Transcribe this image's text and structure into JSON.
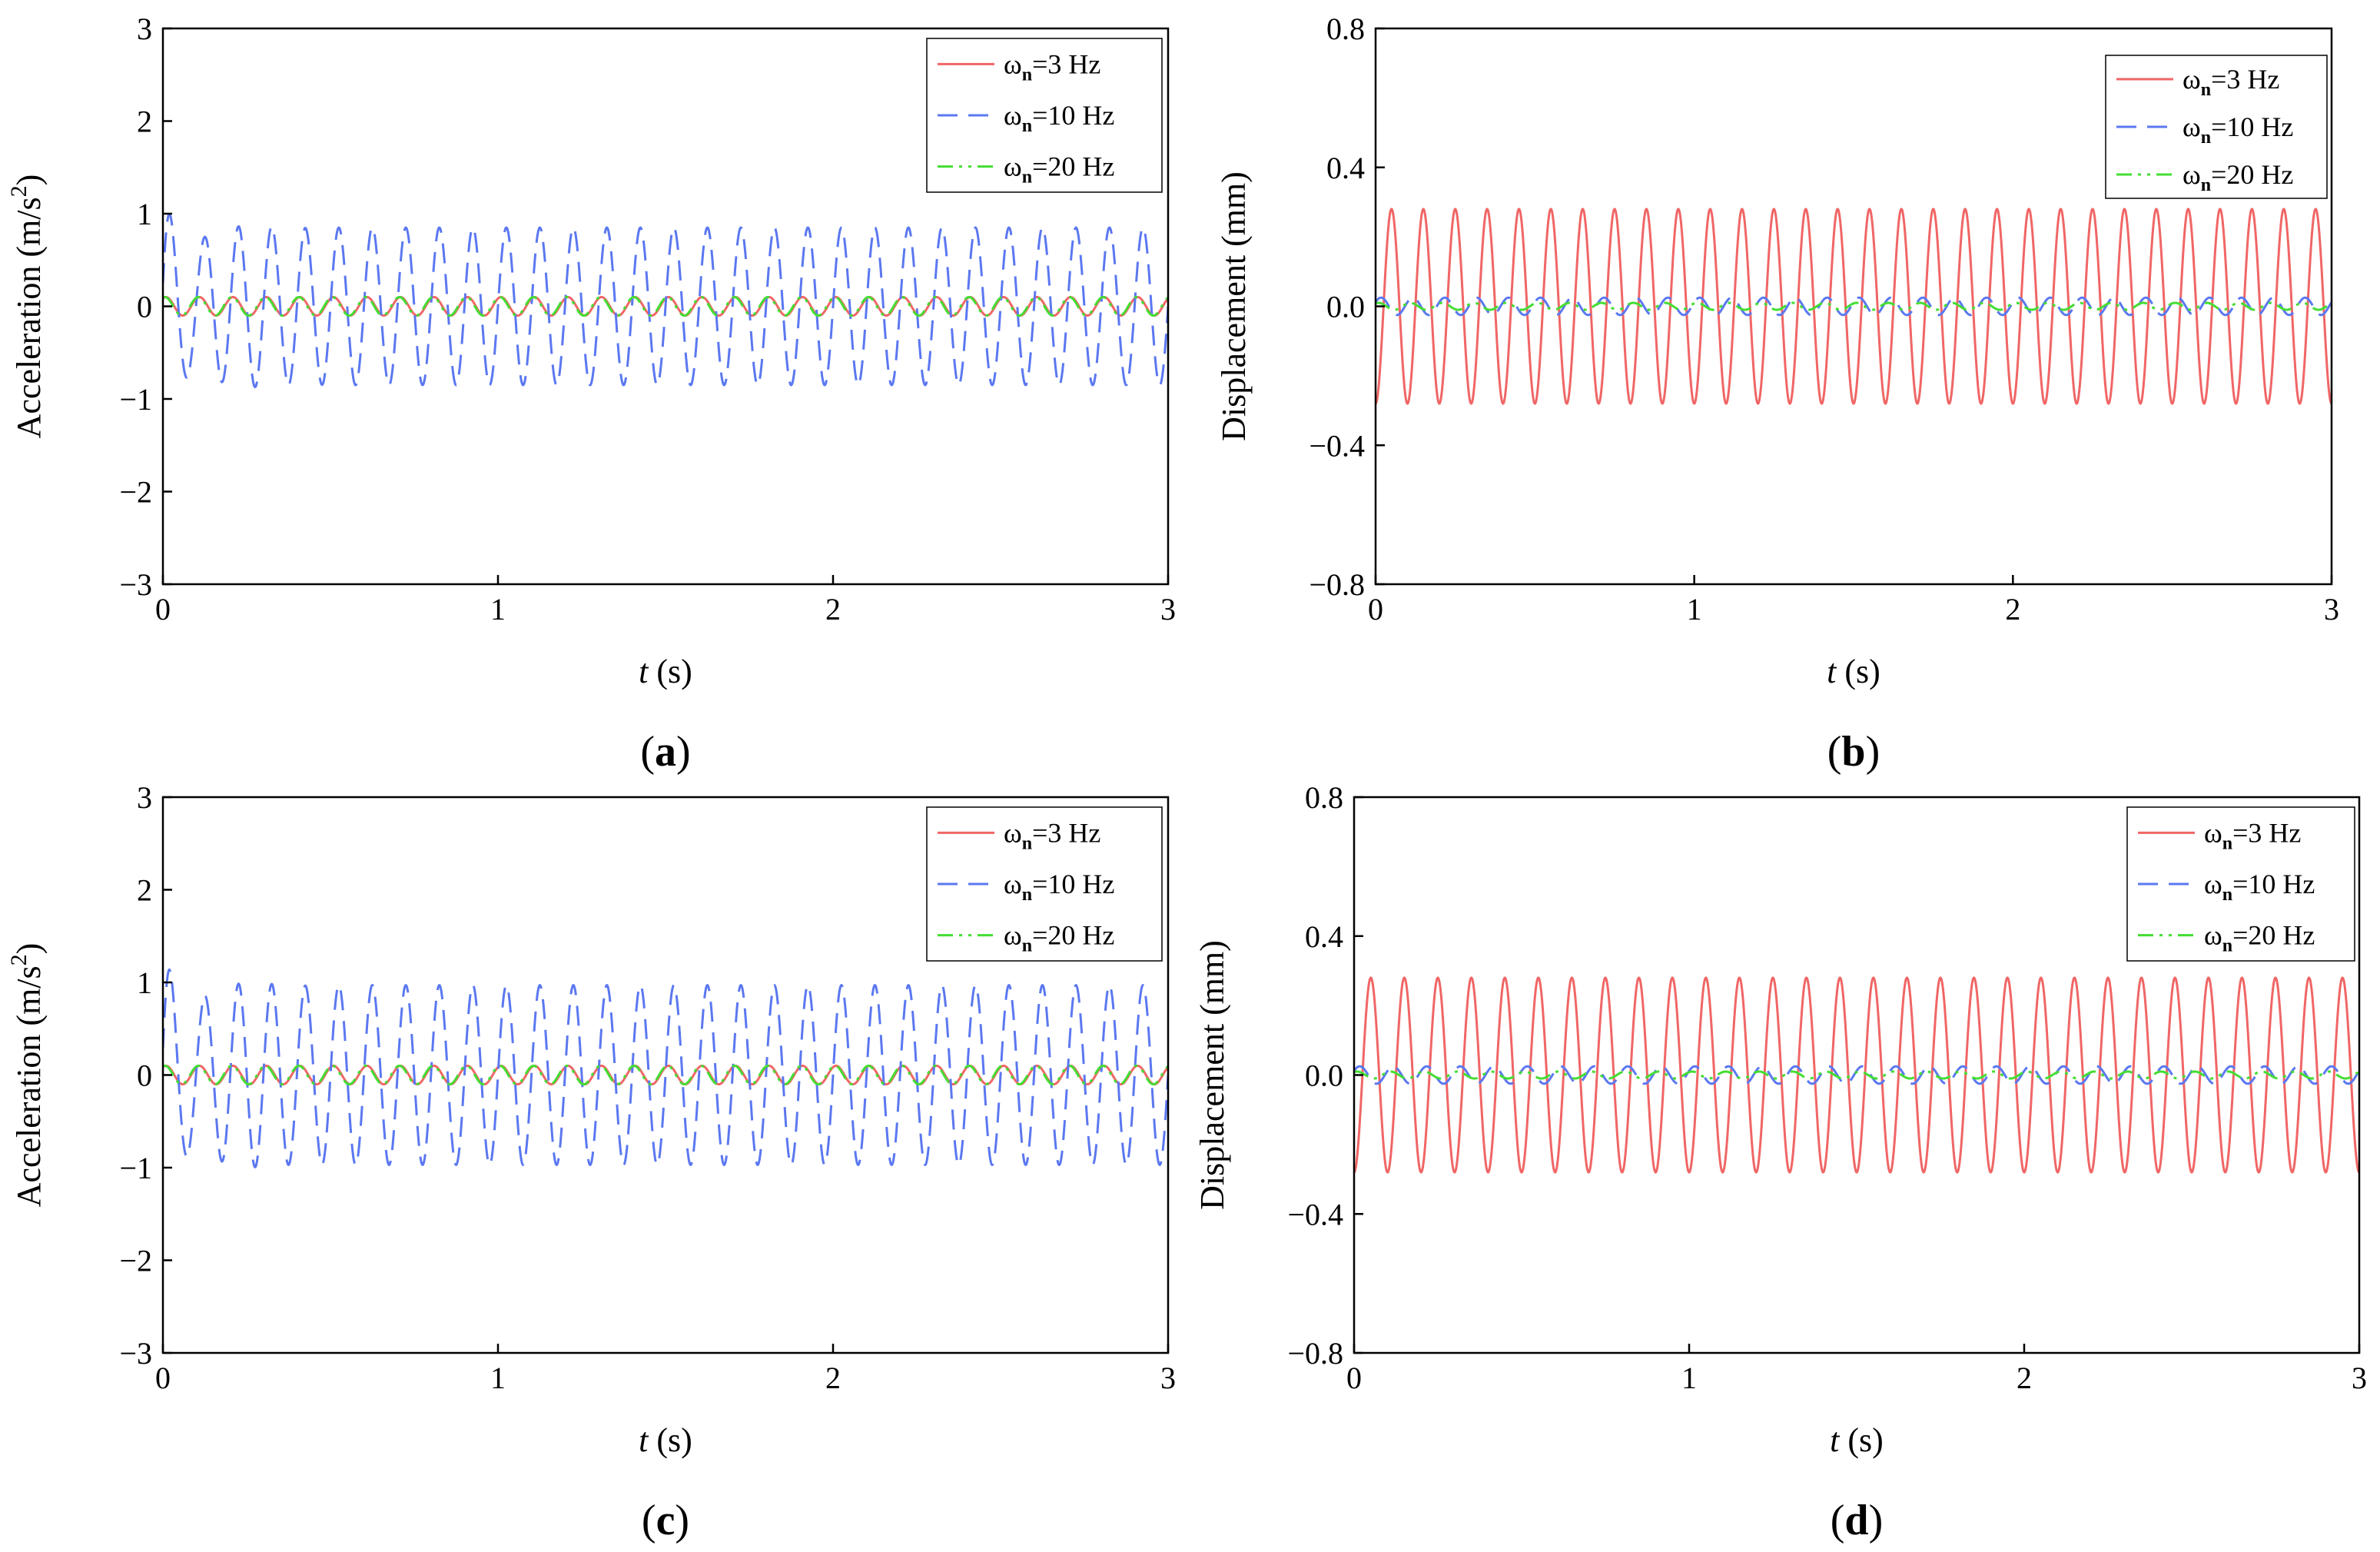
{
  "colors": {
    "s3": "#f06666",
    "s10": "#5b78f0",
    "s20": "#44dd33",
    "axis": "#000000"
  },
  "legend": [
    {
      "base": "ω",
      "sub": "n",
      "rest": "=3 Hz",
      "color": "#f06666",
      "dash": "solid"
    },
    {
      "base": "ω",
      "sub": "n",
      "rest": "=10 Hz",
      "color": "#5b78f0",
      "dash": "dashed"
    },
    {
      "base": "ω",
      "sub": "n",
      "rest": "=20 Hz",
      "color": "#44dd33",
      "dash": "dashdot"
    }
  ],
  "chart_data": [
    {
      "type": "line",
      "panel_label": "a",
      "ylabel": "Acceleration (m/s2)",
      "xlabel_var": "t",
      "xlabel_unit": "(s)",
      "xlim": [
        0,
        3
      ],
      "ylim": [
        -3,
        3
      ],
      "xticks": [
        0,
        1,
        2,
        3
      ],
      "yticks": [
        -3,
        -2,
        -1,
        0,
        1,
        2,
        3
      ],
      "ytick_labels": [
        "−3",
        "−2",
        "−1",
        "0",
        "1",
        "2",
        "3"
      ],
      "legend_position": "top-right",
      "series": [
        {
          "name": "ωn=3 Hz",
          "frequency_hz": 10,
          "amplitude": 0.1,
          "transient_amp": 0,
          "transient_decay": 0.1,
          "phase": 1.0,
          "style": "solid",
          "color": "#f06666"
        },
        {
          "name": "ωn=10 Hz",
          "frequency_hz": 10,
          "amplitude": 0.85,
          "transient_amp": 0.35,
          "transient_decay": 0.1,
          "phase": 0.0,
          "style": "dashed",
          "color": "#5b78f0"
        },
        {
          "name": "ωn=20 Hz",
          "frequency_hz": 10,
          "amplitude": 0.1,
          "transient_amp": 0,
          "transient_decay": 0.1,
          "phase": 1.2,
          "style": "dashdot",
          "color": "#44dd33"
        }
      ]
    },
    {
      "type": "line",
      "panel_label": "b",
      "ylabel": "Displacement (mm)",
      "xlabel_var": "t",
      "xlabel_unit": "(s)",
      "xlim": [
        0,
        3
      ],
      "ylim": [
        -0.8,
        0.8
      ],
      "xticks": [
        0,
        1,
        2,
        3
      ],
      "yticks": [
        -0.8,
        -0.4,
        0.0,
        0.4,
        0.8
      ],
      "ytick_labels": [
        "−0.8",
        "−0.4",
        "0.0",
        "0.4",
        "0.8"
      ],
      "legend_position": "top-right",
      "series": [
        {
          "name": "ωn=3 Hz",
          "frequency_hz": 10,
          "amplitude": 0.28,
          "transient_amp": 0,
          "transient_decay": 0.1,
          "phase": -1.57,
          "style": "solid",
          "color": "#f06666"
        },
        {
          "name": "ωn=10 Hz",
          "frequency_hz": 10,
          "amplitude": 0.025,
          "transient_amp": 0,
          "transient_decay": 0.1,
          "phase": 0.5,
          "style": "dashed",
          "color": "#5b78f0"
        },
        {
          "name": "ωn=20 Hz",
          "frequency_hz": 10,
          "amplitude": 0.01,
          "transient_amp": 0,
          "transient_decay": 0.1,
          "phase": 1.0,
          "style": "dashdot",
          "color": "#44dd33"
        }
      ]
    },
    {
      "type": "line",
      "panel_label": "c",
      "ylabel": "Acceleration (m/s2)",
      "xlabel_var": "t",
      "xlabel_unit": "(s)",
      "xlim": [
        0,
        3
      ],
      "ylim": [
        -3,
        3
      ],
      "xticks": [
        0,
        1,
        2,
        3
      ],
      "yticks": [
        -3,
        -2,
        -1,
        0,
        1,
        2,
        3
      ],
      "ytick_labels": [
        "−3",
        "−2",
        "−1",
        "0",
        "1",
        "2",
        "3"
      ],
      "legend_position": "top-right",
      "series": [
        {
          "name": "ωn=3 Hz",
          "frequency_hz": 10,
          "amplitude": 0.1,
          "transient_amp": 0,
          "transient_decay": 0.1,
          "phase": 1.0,
          "style": "solid",
          "color": "#f06666"
        },
        {
          "name": "ωn=10 Hz",
          "frequency_hz": 10,
          "amplitude": 0.97,
          "transient_amp": 0.4,
          "transient_decay": 0.1,
          "phase": 0.0,
          "style": "dashed",
          "color": "#5b78f0"
        },
        {
          "name": "ωn=20 Hz",
          "frequency_hz": 10,
          "amplitude": 0.1,
          "transient_amp": 0,
          "transient_decay": 0.1,
          "phase": 1.2,
          "style": "dashdot",
          "color": "#44dd33"
        }
      ]
    },
    {
      "type": "line",
      "panel_label": "d",
      "ylabel": "Displacement (mm)",
      "xlabel_var": "t",
      "xlabel_unit": "(s)",
      "xlim": [
        0,
        3
      ],
      "ylim": [
        -0.8,
        0.8
      ],
      "xticks": [
        0,
        1,
        2,
        3
      ],
      "yticks": [
        -0.8,
        -0.4,
        0.0,
        0.4,
        0.8
      ],
      "ytick_labels": [
        "−0.8",
        "−0.4",
        "0.0",
        "0.4",
        "0.8"
      ],
      "legend_position": "top-right",
      "series": [
        {
          "name": "ωn=3 Hz",
          "frequency_hz": 10,
          "amplitude": 0.28,
          "transient_amp": 0,
          "transient_decay": 0.1,
          "phase": -1.57,
          "style": "solid",
          "color": "#f06666"
        },
        {
          "name": "ωn=10 Hz",
          "frequency_hz": 10,
          "amplitude": 0.025,
          "transient_amp": 0,
          "transient_decay": 0.1,
          "phase": 0.5,
          "style": "dashed",
          "color": "#5b78f0"
        },
        {
          "name": "ωn=20 Hz",
          "frequency_hz": 10,
          "amplitude": 0.01,
          "transient_amp": 0,
          "transient_decay": 0.1,
          "phase": 1.0,
          "style": "dashdot",
          "color": "#44dd33"
        }
      ]
    }
  ]
}
